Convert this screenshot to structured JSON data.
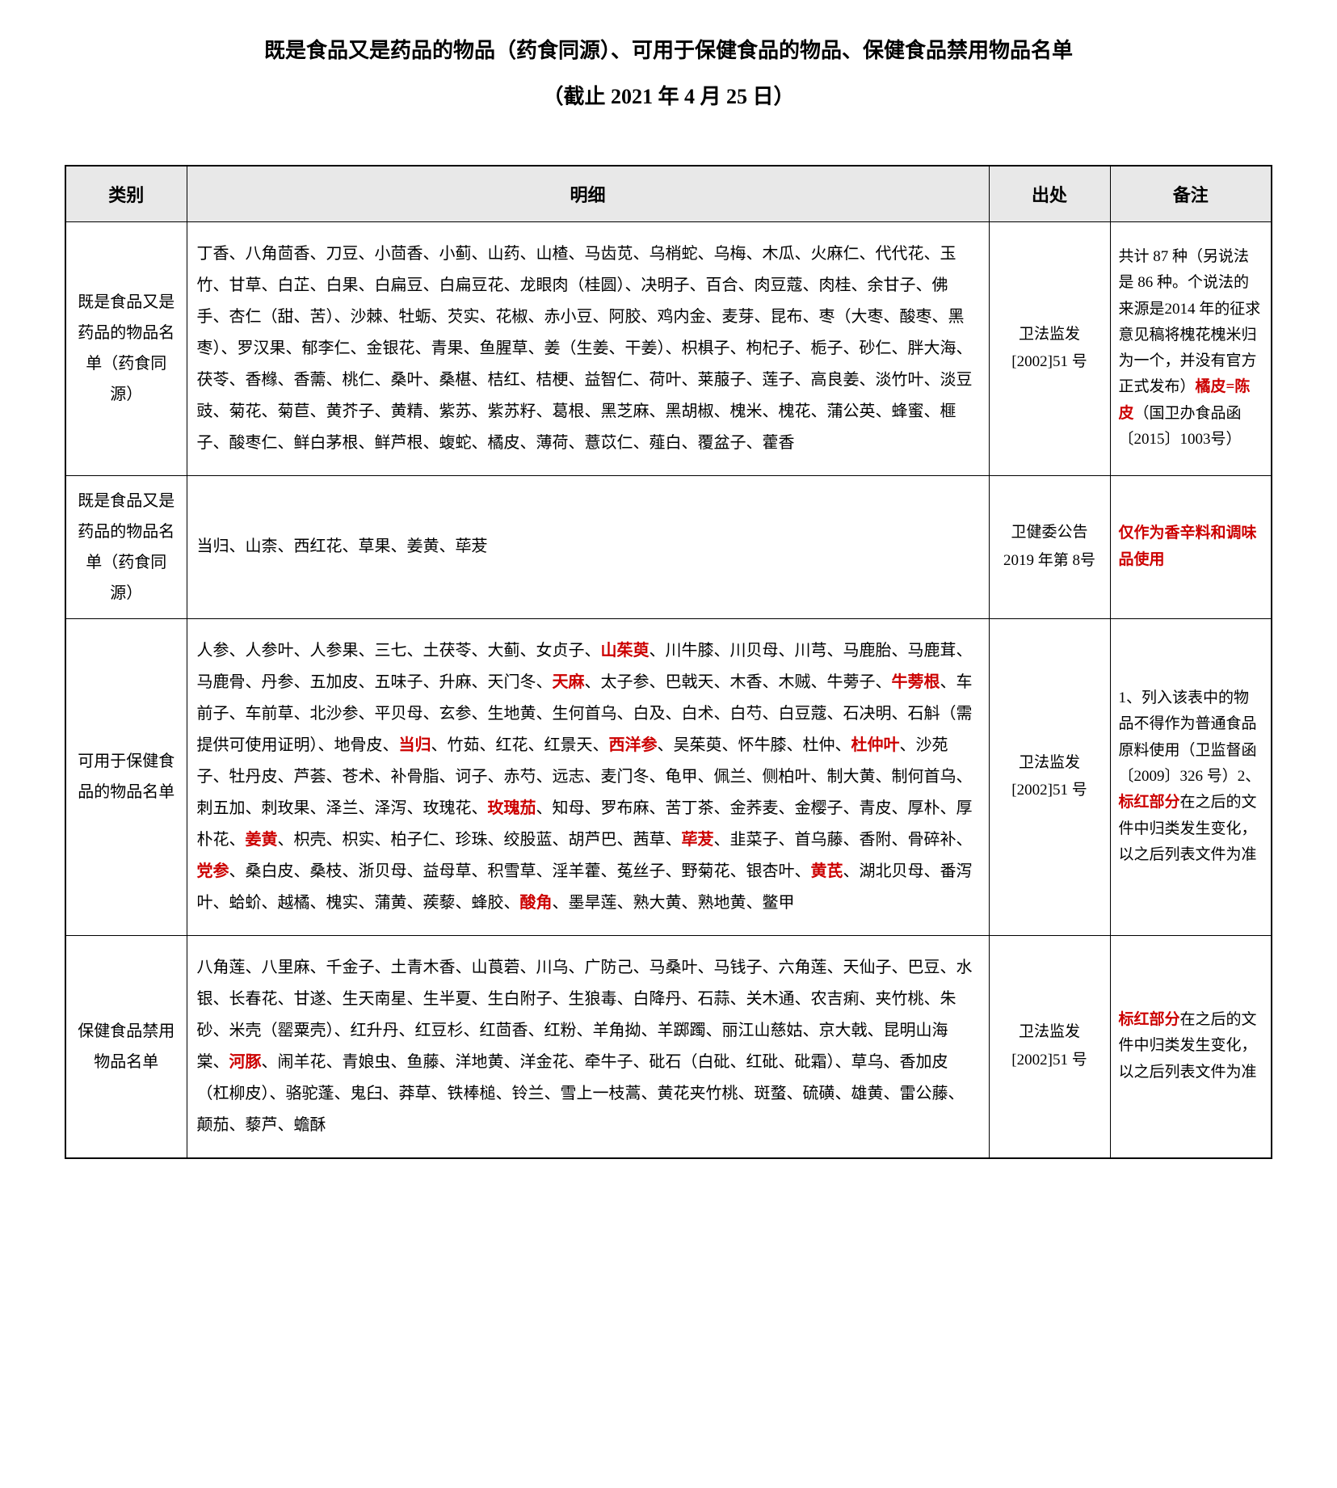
{
  "title": "既是食品又是药品的物品（药食同源）、可用于保健食品的物品、保健食品禁用物品名单",
  "subtitle": "（截止 2021 年 4 月 25 日）",
  "headers": {
    "category": "类别",
    "detail": "明细",
    "source": "出处",
    "remark": "备注"
  },
  "rows": [
    {
      "category": "既是食品又是药品的物品名单（药食同源）",
      "detail_segments": [
        {
          "text": "丁香、八角茴香、刀豆、小茴香、小蓟、山药、山楂、马齿苋、乌梢蛇、乌梅、木瓜、火麻仁、代代花、玉竹、甘草、白芷、白果、白扁豆、白扁豆花、龙眼肉（桂圆）、决明子、百合、肉豆蔻、肉桂、余甘子、佛手、杏仁（甜、苦）、沙棘、牡蛎、芡实、花椒、赤小豆、阿胶、鸡内金、麦芽、昆布、枣（大枣、酸枣、黑枣）、罗汉果、郁李仁、金银花、青果、鱼腥草、姜（生姜、干姜）、枳椇子、枸杞子、栀子、砂仁、胖大海、茯苓、香橼、香薷、桃仁、桑叶、桑椹、桔红、桔梗、益智仁、荷叶、莱菔子、莲子、高良姜、淡竹叶、淡豆豉、菊花、菊苣、黄芥子、黄精、紫苏、紫苏籽、葛根、黑芝麻、黑胡椒、槐米、槐花、蒲公英、蜂蜜、榧子、酸枣仁、鲜白茅根、鲜芦根、蝮蛇、橘皮、薄荷、薏苡仁、薤白、覆盆子、藿香",
          "red": false
        }
      ],
      "source": "卫法监发[2002]51 号",
      "remark_segments": [
        {
          "text": "共计 87 种（另说法是 86 种。个说法的来源是2014 年的征求意见稿将槐花槐米归为一个，并没有官方正式发布）",
          "red": false
        },
        {
          "text": "橘皮=陈皮",
          "red": true
        },
        {
          "text": "（国卫办食品函〔2015〕1003号）",
          "red": false
        }
      ]
    },
    {
      "category": "既是食品又是药品的物品名单（药食同源）",
      "detail_segments": [
        {
          "text": "当归、山柰、西红花、草果、姜黄、荜茇",
          "red": false
        }
      ],
      "source": "卫健委公告2019 年第 8号",
      "remark_segments": [
        {
          "text": "仅作为香辛料和调味品使用",
          "red": true
        }
      ]
    },
    {
      "category": "可用于保健食品的物品名单",
      "detail_segments": [
        {
          "text": "人参、人参叶、人参果、三七、土茯苓、大蓟、女贞子、",
          "red": false
        },
        {
          "text": "山茱萸",
          "red": true
        },
        {
          "text": "、川牛膝、川贝母、川芎、马鹿胎、马鹿茸、马鹿骨、丹参、五加皮、五味子、升麻、天门冬、",
          "red": false
        },
        {
          "text": "天麻",
          "red": true
        },
        {
          "text": "、太子参、巴戟天、木香、木贼、牛蒡子、",
          "red": false
        },
        {
          "text": "牛蒡根",
          "red": true
        },
        {
          "text": "、车前子、车前草、北沙参、平贝母、玄参、生地黄、生何首乌、白及、白术、白芍、白豆蔻、石决明、石斛（需提供可使用证明）、地骨皮、",
          "red": false
        },
        {
          "text": "当归",
          "red": true
        },
        {
          "text": "、竹茹、红花、红景天、",
          "red": false
        },
        {
          "text": "西洋参",
          "red": true
        },
        {
          "text": "、吴茱萸、怀牛膝、杜仲、",
          "red": false
        },
        {
          "text": "杜仲叶",
          "red": true
        },
        {
          "text": "、沙苑子、牡丹皮、芦荟、苍术、补骨脂、诃子、赤芍、远志、麦门冬、龟甲、佩兰、侧柏叶、制大黄、制何首乌、刺五加、刺玫果、泽兰、泽泻、玫瑰花、",
          "red": false
        },
        {
          "text": "玫瑰茄",
          "red": true
        },
        {
          "text": "、知母、罗布麻、苦丁茶、金荞麦、金樱子、青皮、厚朴、厚朴花、",
          "red": false
        },
        {
          "text": "姜黄",
          "red": true
        },
        {
          "text": "、枳壳、枳实、柏子仁、珍珠、绞股蓝、胡芦巴、茜草、",
          "red": false
        },
        {
          "text": "荜茇",
          "red": true
        },
        {
          "text": "、韭菜子、首乌藤、香附、骨碎补、",
          "red": false
        },
        {
          "text": "党参",
          "red": true
        },
        {
          "text": "、桑白皮、桑枝、浙贝母、益母草、积雪草、淫羊藿、菟丝子、野菊花、银杏叶、",
          "red": false
        },
        {
          "text": "黄芪",
          "red": true
        },
        {
          "text": "、湖北贝母、番泻叶、蛤蚧、越橘、槐实、蒲黄、蒺藜、蜂胶、",
          "red": false
        },
        {
          "text": "酸角",
          "red": true
        },
        {
          "text": "、墨旱莲、熟大黄、熟地黄、鳖甲",
          "red": false
        }
      ],
      "source": "卫法监发[2002]51 号",
      "remark_segments": [
        {
          "text": "1、列入该表中的物品不得作为普通食品原料使用（卫监督函〔2009〕326 号）2、",
          "red": false
        },
        {
          "text": "标红部分",
          "red": true
        },
        {
          "text": "在之后的文件中归类发生变化，以之后列表文件为准",
          "red": false
        }
      ]
    },
    {
      "category": "保健食品禁用物品名单",
      "detail_segments": [
        {
          "text": "八角莲、八里麻、千金子、土青木香、山莨菪、川乌、广防己、马桑叶、马钱子、六角莲、天仙子、巴豆、水银、长春花、甘遂、生天南星、生半夏、生白附子、生狼毒、白降丹、石蒜、关木通、农吉痢、夹竹桃、朱砂、米壳（罂粟壳）、红升丹、红豆杉、红茴香、红粉、羊角拗、羊踯躅、丽江山慈姑、京大戟、昆明山海棠、",
          "red": false
        },
        {
          "text": "河豚",
          "red": true
        },
        {
          "text": "、闹羊花、青娘虫、鱼藤、洋地黄、洋金花、牵牛子、砒石（白砒、红砒、砒霜）、草乌、香加皮（杠柳皮）、骆驼蓬、鬼臼、莽草、铁棒槌、铃兰、雪上一枝蒿、黄花夹竹桃、斑蝥、硫磺、雄黄、雷公藤、颠茄、藜芦、蟾酥",
          "red": false
        }
      ],
      "source": "卫法监发[2002]51 号",
      "remark_segments": [
        {
          "text": "标红部分",
          "red": true
        },
        {
          "text": "在之后的文件中归类发生变化，以之后列表文件为准",
          "red": false
        }
      ]
    }
  ]
}
